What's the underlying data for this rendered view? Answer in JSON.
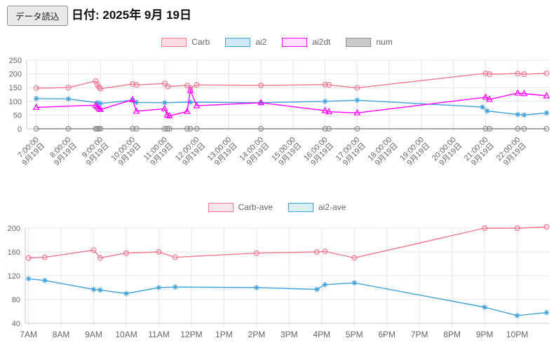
{
  "header": {
    "load_button_label": "データ読込",
    "date_label": "日付: 2025年 9月 19日"
  },
  "chart_data": [
    {
      "type": "line",
      "title": "",
      "tick_date": "9月19日",
      "x_ticks": [
        "7:00:00",
        "8:00:00",
        "9:00:00",
        "10:00:00",
        "11:00:00",
        "12:00:00",
        "13:00:00",
        "14:00:00",
        "15:00:00",
        "16:00:00",
        "17:00:00",
        "18:00:00",
        "19:00:00",
        "20:00:00",
        "21:00:00",
        "22:00:00"
      ],
      "ylim": [
        0,
        250
      ],
      "y_ticks": [
        0,
        50,
        100,
        150,
        200,
        250
      ],
      "x_unit": "hour-of-day",
      "legend_position": "top",
      "grid": true,
      "legend": [
        {
          "label": "Carb",
          "color": "#f07890",
          "fill": "rgba(240,120,144,0.25)"
        },
        {
          "label": "ai2",
          "color": "#3fa2da",
          "fill": "rgba(63,162,218,0.25)"
        },
        {
          "label": "ai2dt",
          "color": "#ff00ff",
          "fill": "rgba(255,0,255,0.12)"
        },
        {
          "label": "num",
          "color": "#8c8c8c",
          "fill": "rgba(140,140,140,0.45)"
        }
      ],
      "series": [
        {
          "name": "Carb",
          "color": "#f07890",
          "marker": "circle",
          "points": [
            [
              7,
              148
            ],
            [
              8,
              150
            ],
            [
              8.85,
              174
            ],
            [
              8.9,
              161
            ],
            [
              8.95,
              152
            ],
            [
              9,
              146
            ],
            [
              10,
              163
            ],
            [
              10.12,
              160
            ],
            [
              11,
              165
            ],
            [
              11.1,
              154
            ],
            [
              11.7,
              158
            ],
            [
              11.8,
              149
            ],
            [
              12,
              160
            ],
            [
              14,
              158
            ],
            [
              16,
              161
            ],
            [
              16.12,
              160
            ],
            [
              17,
              149
            ],
            [
              21,
              202
            ],
            [
              21.12,
              199
            ],
            [
              22,
              201
            ],
            [
              22.2,
              199
            ],
            [
              22.9,
              202
            ]
          ]
        },
        {
          "name": "ai2",
          "color": "#3fa2da",
          "marker": "asterisk",
          "points": [
            [
              7,
              110
            ],
            [
              8,
              109
            ],
            [
              8.9,
              95
            ],
            [
              9,
              92
            ],
            [
              10,
              104
            ],
            [
              10.12,
              96
            ],
            [
              11,
              95
            ],
            [
              11.8,
              97
            ],
            [
              14,
              95
            ],
            [
              16,
              100
            ],
            [
              17,
              104
            ],
            [
              20.9,
              79
            ],
            [
              21.05,
              65
            ],
            [
              22,
              52
            ],
            [
              22.2,
              50
            ],
            [
              22.9,
              58
            ]
          ]
        },
        {
          "name": "ai2dt",
          "color": "#ff00ff",
          "marker": "triangle",
          "points": [
            [
              7,
              78
            ],
            [
              8.85,
              86
            ],
            [
              8.9,
              80
            ],
            [
              8.95,
              74
            ],
            [
              9,
              70
            ],
            [
              10,
              106
            ],
            [
              10.12,
              64
            ],
            [
              11,
              73
            ],
            [
              11.08,
              50
            ],
            [
              11.15,
              47
            ],
            [
              11.7,
              63
            ],
            [
              11.8,
              140
            ],
            [
              12,
              84
            ],
            [
              14,
              95
            ],
            [
              16,
              66
            ],
            [
              16.12,
              62
            ],
            [
              17,
              58
            ],
            [
              21,
              115
            ],
            [
              21.12,
              107
            ],
            [
              22,
              130
            ],
            [
              22.2,
              128
            ],
            [
              22.9,
              120
            ]
          ]
        },
        {
          "name": "num",
          "color": "#8c8c8c",
          "marker": "circle",
          "points": [
            [
              7,
              0
            ],
            [
              8,
              0
            ],
            [
              8.85,
              0
            ],
            [
              8.9,
              0
            ],
            [
              8.95,
              0
            ],
            [
              9,
              0
            ],
            [
              10,
              0
            ],
            [
              10.12,
              0
            ],
            [
              11,
              0
            ],
            [
              11.08,
              0
            ],
            [
              11.15,
              0
            ],
            [
              11.7,
              0
            ],
            [
              11.8,
              0
            ],
            [
              12,
              0
            ],
            [
              14,
              0
            ],
            [
              16,
              0
            ],
            [
              16.12,
              0
            ],
            [
              17,
              0
            ],
            [
              21,
              0
            ],
            [
              21.12,
              0
            ],
            [
              22,
              0
            ],
            [
              22.2,
              0
            ],
            [
              22.9,
              0
            ]
          ]
        }
      ]
    },
    {
      "type": "line",
      "title": "",
      "x_ticks": [
        "7AM",
        "8AM",
        "9AM",
        "10AM",
        "11AM",
        "12PM",
        "1PM",
        "2PM",
        "3PM",
        "4PM",
        "5PM",
        "6PM",
        "7PM",
        "8PM",
        "9PM",
        "10PM"
      ],
      "ylim": [
        40,
        200
      ],
      "y_ticks": [
        40,
        80,
        120,
        160,
        200
      ],
      "x_unit": "hour-of-day",
      "legend_position": "top",
      "grid": true,
      "legend": [
        {
          "label": "Carb-ave",
          "color": "#f07890",
          "fill": "rgba(240,120,144,0.18)"
        },
        {
          "label": "ai2-ave",
          "color": "#3fa2da",
          "fill": "rgba(63,162,218,0.18)"
        }
      ],
      "series": [
        {
          "name": "Carb-ave",
          "color": "#f07890",
          "marker": "circle",
          "points": [
            [
              7,
              150
            ],
            [
              7.5,
              151
            ],
            [
              9,
              163
            ],
            [
              9.2,
              150
            ],
            [
              10,
              158
            ],
            [
              11,
              160
            ],
            [
              11.5,
              151
            ],
            [
              14,
              158
            ],
            [
              15.85,
              160
            ],
            [
              16.1,
              161
            ],
            [
              17,
              150
            ],
            [
              21,
              200
            ],
            [
              22,
              200
            ],
            [
              22.9,
              202
            ]
          ]
        },
        {
          "name": "ai2-ave",
          "color": "#3fa2da",
          "marker": "asterisk",
          "points": [
            [
              7,
              115
            ],
            [
              7.5,
              112
            ],
            [
              9,
              97
            ],
            [
              9.2,
              96
            ],
            [
              10,
              90
            ],
            [
              11,
              100
            ],
            [
              11.5,
              101
            ],
            [
              14,
              100
            ],
            [
              15.85,
              97
            ],
            [
              16.1,
              105
            ],
            [
              17,
              108
            ],
            [
              21,
              67
            ],
            [
              22,
              53
            ],
            [
              22.9,
              58
            ]
          ]
        }
      ]
    }
  ]
}
